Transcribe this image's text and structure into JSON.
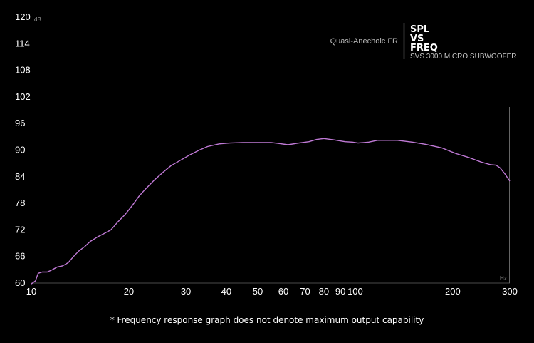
{
  "chart_data": {
    "type": "line",
    "title_lines": [
      "SPL",
      "VS",
      "FREQ"
    ],
    "subtitle": "Quasi-Anechoic FR",
    "product": "SVS 3000 MICRO SUBWOOFER",
    "ylabel": "dB",
    "xlabel": "Hz",
    "x_scale": "log",
    "xlim": [
      10,
      300
    ],
    "ylim": [
      60,
      120
    ],
    "x_ticks": [
      10,
      20,
      30,
      40,
      50,
      60,
      70,
      80,
      90,
      100,
      200,
      300
    ],
    "y_ticks": [
      60,
      66,
      72,
      78,
      84,
      90,
      96,
      102,
      108,
      114,
      120
    ],
    "grid": false,
    "series": [
      {
        "color": "#c07ad6",
        "x": [
          10,
          10.3,
          10.5,
          10.8,
          11.2,
          11.6,
          12.0,
          12.5,
          13.0,
          13.5,
          14.0,
          14.6,
          15.2,
          16.0,
          16.8,
          17.6,
          18.5,
          19.5,
          20.5,
          21.5,
          22.5,
          24.0,
          25.5,
          27.0,
          29.0,
          31.0,
          33.0,
          35.0,
          38.0,
          41.0,
          45.0,
          50.0,
          55.0,
          58.0,
          62.0,
          67.0,
          72.0,
          76.0,
          80.0,
          86.0,
          93.0,
          98.0,
          102.0,
          110.0,
          117.0,
          125.0,
          135.0,
          150.0,
          165.0,
          185.0,
          205.0,
          225.0,
          245.0,
          262.0,
          272.0,
          280.0,
          290.0,
          300.0
        ],
        "y": [
          59.8,
          60.5,
          62.2,
          62.5,
          62.5,
          63.0,
          63.6,
          63.9,
          64.6,
          66.0,
          67.2,
          68.2,
          69.4,
          70.4,
          71.2,
          72.0,
          73.8,
          75.5,
          77.5,
          79.6,
          81.2,
          83.3,
          85.0,
          86.5,
          87.8,
          89.0,
          90.0,
          90.8,
          91.4,
          91.6,
          91.7,
          91.7,
          91.7,
          91.5,
          91.2,
          91.6,
          91.9,
          92.4,
          92.6,
          92.3,
          91.9,
          91.8,
          91.6,
          91.8,
          92.2,
          92.2,
          92.2,
          91.8,
          91.3,
          90.5,
          89.2,
          88.3,
          87.3,
          86.7,
          86.6,
          86.0,
          84.6,
          83.0
        ]
      }
    ]
  },
  "footnote": "* Frequency response graph does not denote maximum output capability"
}
